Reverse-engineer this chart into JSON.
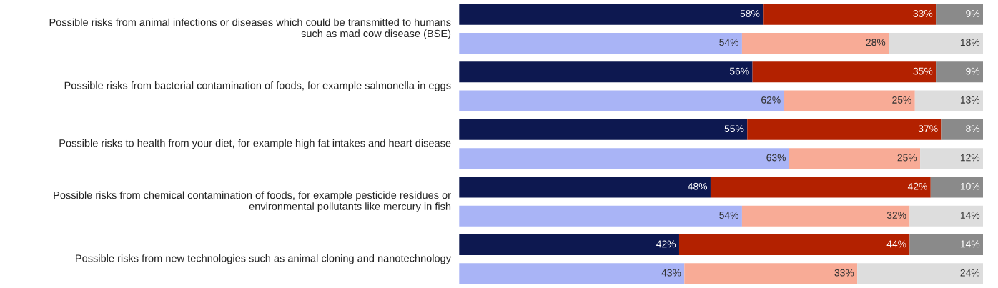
{
  "chart_data": {
    "type": "bar",
    "orientation": "horizontal",
    "stacked": true,
    "categories": [
      "Possible risks from animal infections or diseases which could be transmitted to humans\nsuch as mad cow disease (BSE)",
      null,
      "Possible risks from bacterial contamination of foods, for example salmonella in eggs",
      null,
      "Possible risks to health from your diet, for example high fat intakes and heart disease",
      null,
      "Possible risks from chemical contamination of foods, for example pesticide residues or\nenvironmental pollutants like mercury in fish",
      null,
      "Possible risks from new technologies such as animal cloning and nanotechnology",
      null
    ],
    "series": [
      {
        "colors": [
          "#0d1850",
          "#a9b4f6",
          "#0d1850",
          "#a9b4f6",
          "#0d1850",
          "#a9b4f6",
          "#0d1850",
          "#a9b4f6",
          "#0d1850",
          "#a9b4f6"
        ],
        "values": [
          58,
          54,
          56,
          62,
          55,
          63,
          48,
          54,
          42,
          43
        ],
        "value_labels": [
          "58%",
          "54%",
          "56%",
          "62%",
          "55%",
          "63%",
          "48%",
          "54%",
          "42%",
          "43%"
        ]
      },
      {
        "colors": [
          "#b32100",
          "#f8ab96",
          "#b32100",
          "#f8ab96",
          "#b32100",
          "#f8ab96",
          "#b32100",
          "#f8ab96",
          "#b32100",
          "#f8ab96"
        ],
        "values": [
          33,
          28,
          35,
          25,
          37,
          25,
          42,
          32,
          44,
          33
        ],
        "value_labels": [
          "33%",
          "28%",
          "35%",
          "25%",
          "37%",
          "25%",
          "42%",
          "32%",
          "44%",
          "33%"
        ]
      },
      {
        "colors": [
          "#8a8a8a",
          "#dddddd",
          "#8a8a8a",
          "#dddddd",
          "#8a8a8a",
          "#dddddd",
          "#8a8a8a",
          "#dddddd",
          "#8a8a8a",
          "#dddddd"
        ],
        "values": [
          9,
          18,
          9,
          13,
          8,
          12,
          10,
          14,
          14,
          24
        ],
        "value_labels": [
          "9%",
          "18%",
          "9%",
          "13%",
          "8%",
          "12%",
          "10%",
          "14%",
          "14%",
          "24%"
        ]
      }
    ]
  }
}
